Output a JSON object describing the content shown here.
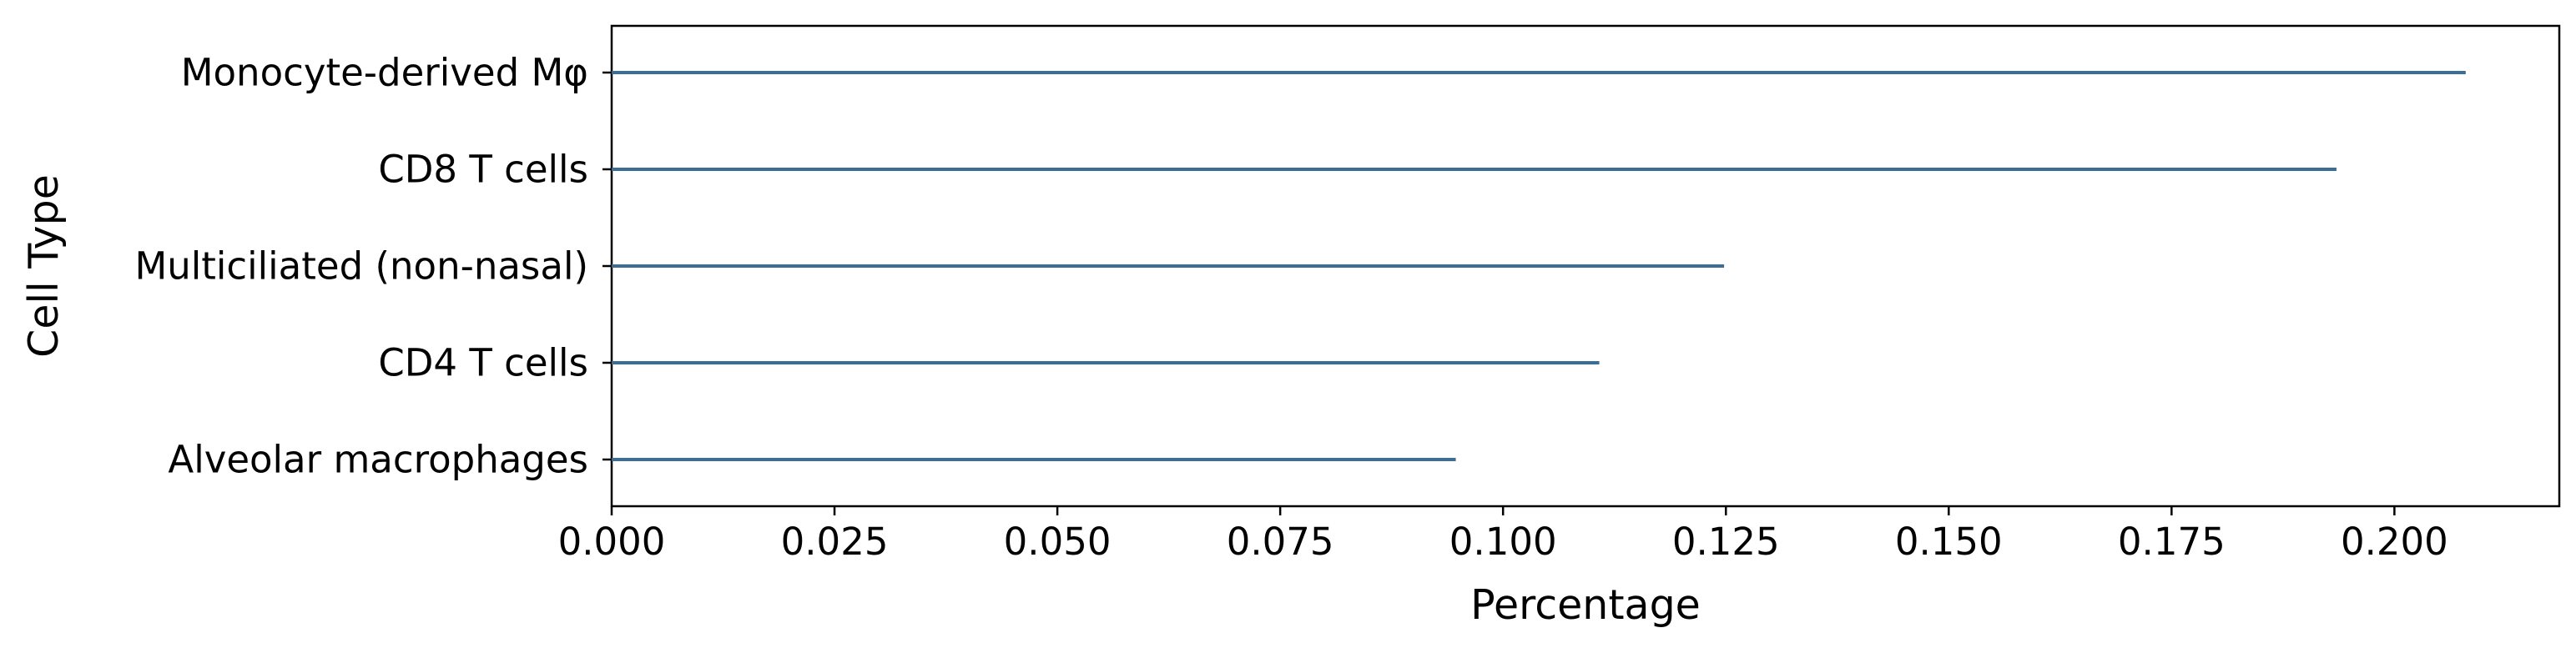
{
  "chart_data": {
    "type": "bar",
    "orientation": "horizontal",
    "categories": [
      "Monocyte-derived Mφ",
      "CD8 T cells",
      "Multiciliated (non-nasal)",
      "CD4 T cells",
      "Alveolar macrophages"
    ],
    "values": [
      0.208,
      0.1935,
      0.1248,
      0.1108,
      0.0947
    ],
    "xlabel": "Percentage",
    "ylabel": "Cell Type",
    "xlim": [
      0,
      0.2185
    ],
    "xticks": [
      "0.000",
      "0.025",
      "0.050",
      "0.075",
      "0.100",
      "0.125",
      "0.150",
      "0.175",
      "0.200"
    ],
    "xtick_values": [
      0,
      0.025,
      0.05,
      0.075,
      0.1,
      0.125,
      0.15,
      0.175,
      0.2
    ],
    "grid": false,
    "legend": "none",
    "colors": {
      "bar": "#3a6e96",
      "axis": "#000000"
    }
  }
}
